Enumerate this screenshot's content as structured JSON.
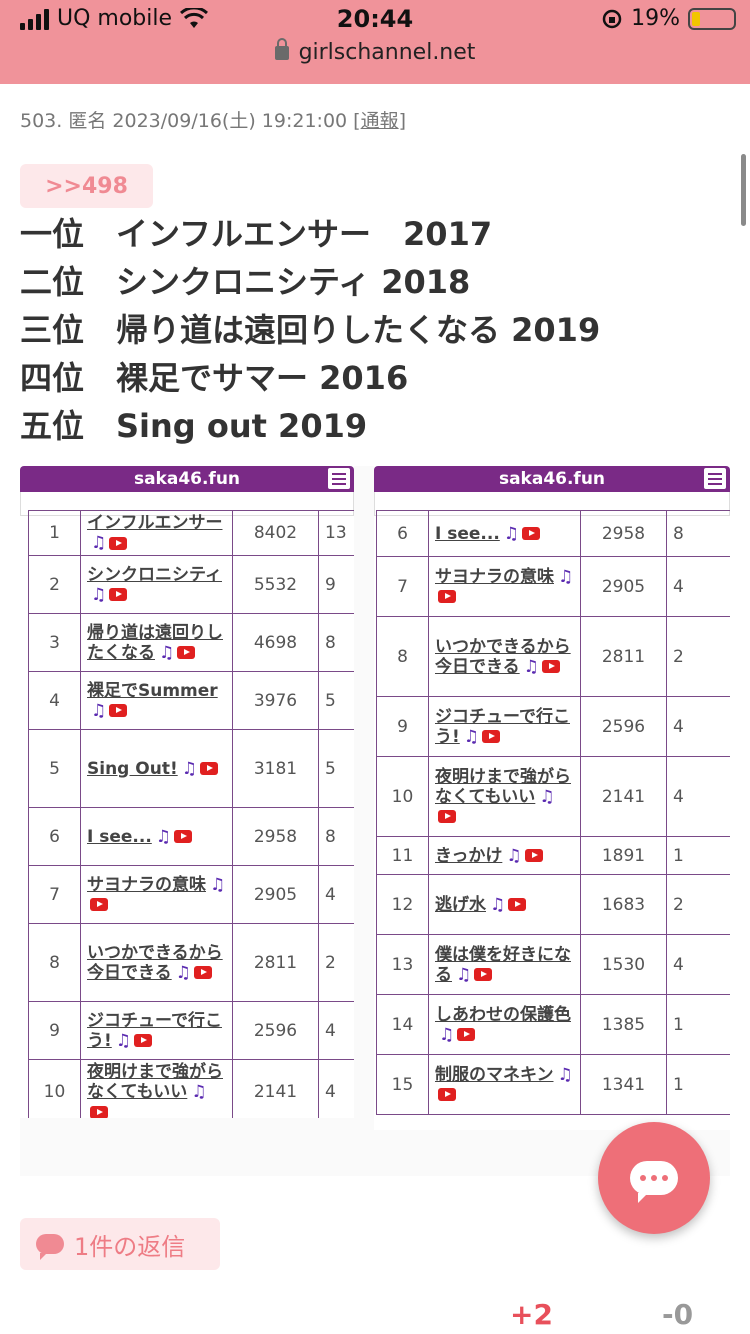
{
  "status_bar": {
    "carrier": "UQ mobile",
    "time": "20:44",
    "battery": "19%",
    "battery_level": 0.19,
    "url": "girlschannel.net"
  },
  "comment": {
    "number": "503.",
    "author": "匿名",
    "datetime": "2023/09/16(土) 19:21:00",
    "report_label": "通報",
    "anchor": ">>498",
    "ranking": [
      "一位　インフルエンサー　2017",
      "二位　シンクロニシティ 2018",
      "三位　帰り道は遠回りしたくなる 2019",
      "四位　裸足でサマー 2016",
      "五位　Sing out 2019"
    ]
  },
  "screenshot_left": {
    "site": "saka46.fun",
    "rows": [
      {
        "rank": "1",
        "title": "インフルエンサー",
        "count": "8402",
        "extra": "13"
      },
      {
        "rank": "2",
        "title": "シンクロニシティ",
        "count": "5532",
        "extra": "9"
      },
      {
        "rank": "3",
        "title": "帰り道は遠回りしたくなる",
        "count": "4698",
        "extra": "8"
      },
      {
        "rank": "4",
        "title": "裸足でSummer",
        "count": "3976",
        "extra": "5"
      },
      {
        "rank": "5",
        "title": "Sing Out!",
        "count": "3181",
        "extra": "5"
      },
      {
        "rank": "6",
        "title": "I see...",
        "count": "2958",
        "extra": "8"
      },
      {
        "rank": "7",
        "title": "サヨナラの意味",
        "count": "2905",
        "extra": "4"
      },
      {
        "rank": "8",
        "title": "いつかできるから今日できる",
        "count": "2811",
        "extra": "2"
      },
      {
        "rank": "9",
        "title": "ジコチューで行こう!",
        "count": "2596",
        "extra": "4"
      },
      {
        "rank": "10",
        "title": "夜明けまで強がらなくてもいい",
        "count": "2141",
        "extra": "4"
      }
    ]
  },
  "screenshot_right": {
    "site": "saka46.fun",
    "rows": [
      {
        "rank": "6",
        "title": "I see...",
        "count": "2958",
        "extra": "8"
      },
      {
        "rank": "7",
        "title": "サヨナラの意味",
        "count": "2905",
        "extra": "4"
      },
      {
        "rank": "8",
        "title": "いつかできるから今日できる",
        "count": "2811",
        "extra": "2"
      },
      {
        "rank": "9",
        "title": "ジコチューで行こう!",
        "count": "2596",
        "extra": "4"
      },
      {
        "rank": "10",
        "title": "夜明けまで強がらなくてもいい",
        "count": "2141",
        "extra": "4"
      },
      {
        "rank": "11",
        "title": "きっかけ",
        "count": "1891",
        "extra": "1"
      },
      {
        "rank": "12",
        "title": "逃げ水",
        "count": "1683",
        "extra": "2"
      },
      {
        "rank": "13",
        "title": "僕は僕を好きになる",
        "count": "1530",
        "extra": "4"
      },
      {
        "rank": "14",
        "title": "しあわせの保護色",
        "count": "1385",
        "extra": "1"
      },
      {
        "rank": "15",
        "title": "制服のマネキン",
        "count": "1341",
        "extra": "1"
      }
    ]
  },
  "footer": {
    "reply_label": "1件の返信",
    "plus_votes": "+2",
    "minus_votes": "-0"
  },
  "icons": {
    "note": "♫"
  },
  "colors": {
    "header_bg": "#f0939a",
    "accent": "#ee6f78",
    "table_purple": "#7a2a86"
  }
}
